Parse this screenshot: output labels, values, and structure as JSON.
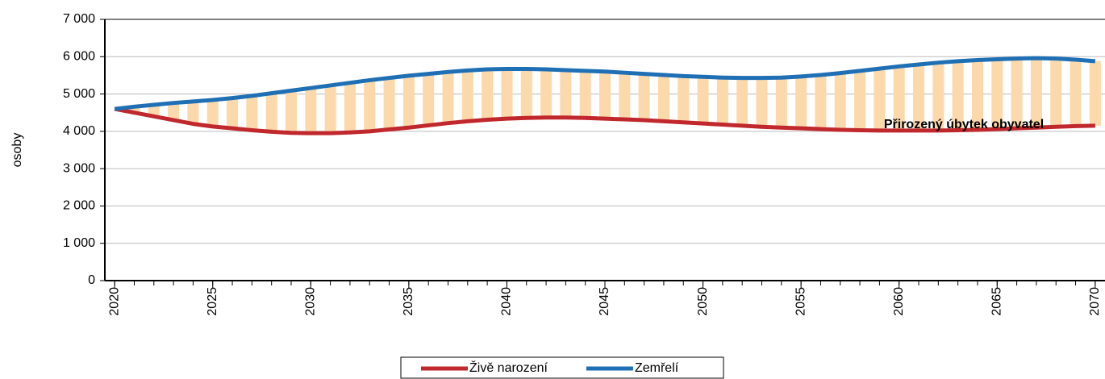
{
  "chart_data": {
    "type": "line",
    "ylabel": "osoby",
    "annotation": "Přirozený úbytek obyvatel",
    "x": [
      2020,
      2021,
      2022,
      2023,
      2024,
      2025,
      2026,
      2027,
      2028,
      2029,
      2030,
      2031,
      2032,
      2033,
      2034,
      2035,
      2036,
      2037,
      2038,
      2039,
      2040,
      2041,
      2042,
      2043,
      2044,
      2045,
      2046,
      2047,
      2048,
      2049,
      2050,
      2051,
      2052,
      2053,
      2054,
      2055,
      2056,
      2057,
      2058,
      2059,
      2060,
      2061,
      2062,
      2063,
      2064,
      2065,
      2066,
      2067,
      2068,
      2069,
      2070
    ],
    "series": [
      {
        "name": "Živě narození",
        "color": "#c0282d",
        "values": [
          4600,
          4500,
          4400,
          4300,
          4200,
          4130,
          4080,
          4030,
          3990,
          3960,
          3950,
          3950,
          3970,
          4000,
          4050,
          4100,
          4160,
          4220,
          4270,
          4310,
          4340,
          4360,
          4370,
          4370,
          4360,
          4340,
          4320,
          4300,
          4270,
          4240,
          4210,
          4180,
          4150,
          4120,
          4100,
          4080,
          4060,
          4040,
          4030,
          4020,
          4020,
          4020,
          4020,
          4030,
          4040,
          4060,
          4080,
          4100,
          4120,
          4140,
          4150
        ]
      },
      {
        "name": "Zemřelí",
        "color": "#1f6fb5",
        "values": [
          4600,
          4660,
          4710,
          4760,
          4800,
          4840,
          4890,
          4950,
          5020,
          5090,
          5160,
          5230,
          5300,
          5370,
          5430,
          5490,
          5540,
          5590,
          5630,
          5660,
          5670,
          5670,
          5660,
          5640,
          5620,
          5600,
          5570,
          5540,
          5510,
          5480,
          5460,
          5440,
          5430,
          5430,
          5440,
          5470,
          5510,
          5560,
          5620,
          5680,
          5740,
          5790,
          5840,
          5880,
          5910,
          5930,
          5950,
          5960,
          5950,
          5920,
          5880
        ]
      }
    ],
    "gap_color": "#fcd9ab",
    "xlim": [
      2019.5,
      2070.5
    ],
    "xticks": [
      2020,
      2025,
      2030,
      2035,
      2040,
      2045,
      2050,
      2055,
      2060,
      2065,
      2070
    ],
    "ylim": [
      0,
      7000
    ],
    "yticks": [
      0,
      {
        "value": 1000,
        "label": "1 000"
      },
      {
        "value": 2000,
        "label": "2 000"
      },
      {
        "value": 3000,
        "label": "3 000"
      },
      {
        "value": 4000,
        "label": "4 000"
      },
      {
        "value": 5000,
        "label": "5 000"
      },
      {
        "value": 6000,
        "label": "6 000"
      },
      {
        "value": 7000,
        "label": "7 000"
      }
    ],
    "grid": true,
    "legend": "bottom"
  }
}
